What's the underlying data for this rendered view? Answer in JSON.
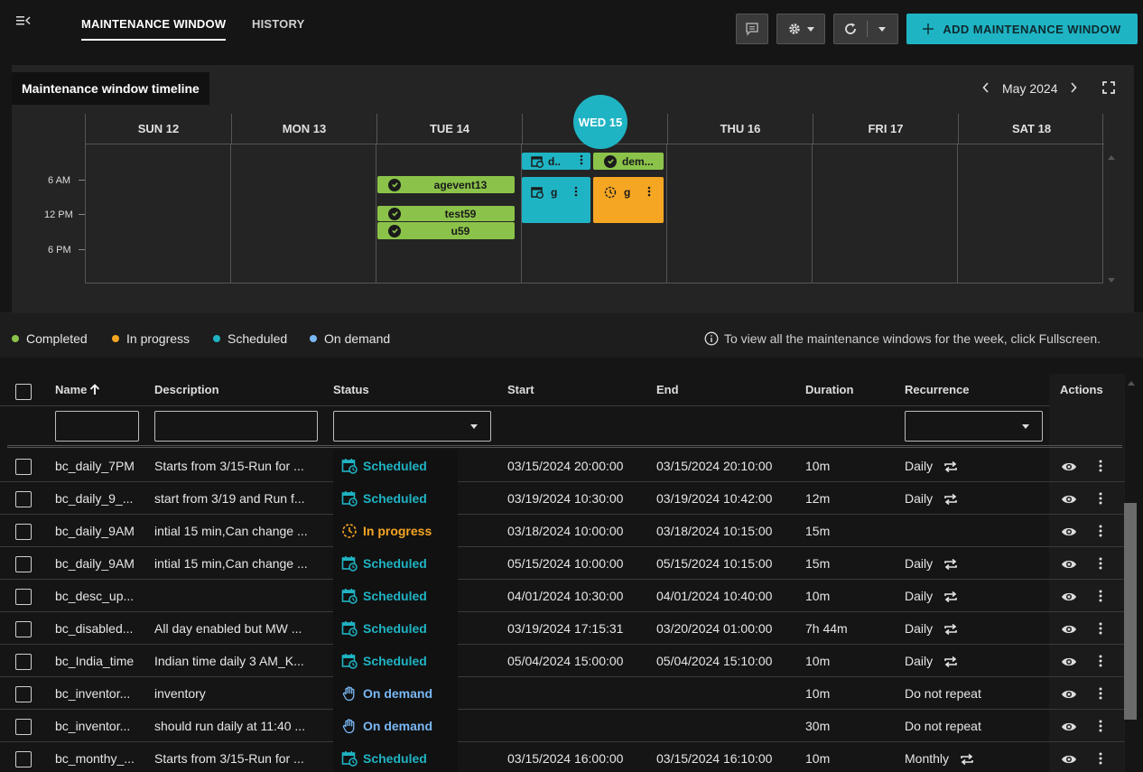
{
  "header": {
    "tabs": [
      {
        "label": "MAINTENANCE WINDOW",
        "active": true
      },
      {
        "label": "HISTORY",
        "active": false
      }
    ],
    "add_button_label": "ADD MAINTENANCE WINDOW",
    "accent_color": "#1fb4c4"
  },
  "timeline": {
    "title": "Maintenance window timeline",
    "month": "May 2024",
    "days": [
      "SUN 12",
      "MON 13",
      "TUE 14",
      "WED 15",
      "THU 16",
      "FRI 17",
      "SAT 18"
    ],
    "today": "WED 15",
    "time_labels": [
      "6 AM",
      "12 PM",
      "6 PM"
    ],
    "events": {
      "tue_1": "agevent13",
      "tue_2": "test59",
      "tue_3": "u59",
      "wed_1": "d..",
      "wed_2": "dem...",
      "wed_3": "g",
      "wed_4": "g"
    }
  },
  "legend": {
    "items": [
      {
        "label": "Completed",
        "color": "#8bc34a"
      },
      {
        "label": "In progress",
        "color": "#f5a623"
      },
      {
        "label": "Scheduled",
        "color": "#1fb4c4"
      },
      {
        "label": "On demand",
        "color": "#7ab8f5"
      }
    ],
    "hint": "To view all the maintenance windows for the week, click Fullscreen."
  },
  "table": {
    "columns": {
      "name": "Name",
      "description": "Description",
      "status": "Status",
      "start": "Start",
      "end": "End",
      "duration": "Duration",
      "recurrence": "Recurrence",
      "actions": "Actions"
    },
    "rows": [
      {
        "name": "bc_daily_7PM",
        "description": "Starts from 3/15-Run for ...",
        "status": "Scheduled",
        "start": "03/15/2024 20:00:00",
        "end": "03/15/2024 20:10:00",
        "duration": "10m",
        "recurrence": "Daily"
      },
      {
        "name": "bc_daily_9_...",
        "description": "start from 3/19 and Run f...",
        "status": "Scheduled",
        "start": "03/19/2024 10:30:00",
        "end": "03/19/2024 10:42:00",
        "duration": "12m",
        "recurrence": "Daily"
      },
      {
        "name": "bc_daily_9AM",
        "description": "intial 15 min,Can change ...",
        "status": "In progress",
        "start": "03/18/2024 10:00:00",
        "end": "03/18/2024 10:15:00",
        "duration": "15m",
        "recurrence": ""
      },
      {
        "name": "bc_daily_9AM",
        "description": "intial 15 min,Can change ...",
        "status": "Scheduled",
        "start": "05/15/2024 10:00:00",
        "end": "05/15/2024 10:15:00",
        "duration": "15m",
        "recurrence": "Daily"
      },
      {
        "name": "bc_desc_up...",
        "description": "",
        "status": "Scheduled",
        "start": "04/01/2024 10:30:00",
        "end": "04/01/2024 10:40:00",
        "duration": "10m",
        "recurrence": "Daily"
      },
      {
        "name": "bc_disabled...",
        "description": "All day enabled but MW ...",
        "status": "Scheduled",
        "start": "03/19/2024 17:15:31",
        "end": "03/20/2024 01:00:00",
        "duration": "7h 44m",
        "recurrence": "Daily"
      },
      {
        "name": "bc_India_time",
        "description": "Indian time daily 3 AM_K...",
        "status": "Scheduled",
        "start": "05/04/2024 15:00:00",
        "end": "05/04/2024 15:10:00",
        "duration": "10m",
        "recurrence": "Daily"
      },
      {
        "name": "bc_inventor...",
        "description": "inventory",
        "status": "On demand",
        "start": "",
        "end": "",
        "duration": "10m",
        "recurrence": "Do not repeat"
      },
      {
        "name": "bc_inventor...",
        "description": "should run daily at 11:40 ...",
        "status": "On demand",
        "start": "",
        "end": "",
        "duration": "30m",
        "recurrence": "Do not repeat"
      },
      {
        "name": "bc_monthy_...",
        "description": "Starts from 3/15-Run for ...",
        "status": "Scheduled",
        "start": "03/15/2024 16:00:00",
        "end": "03/15/2024 16:10:00",
        "duration": "10m",
        "recurrence": "Monthly"
      }
    ]
  }
}
